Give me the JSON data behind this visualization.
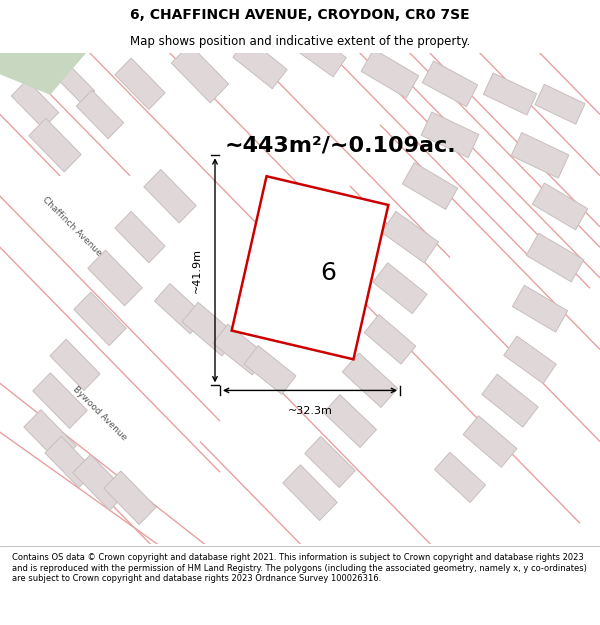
{
  "title": "6, CHAFFINCH AVENUE, CROYDON, CR0 7SE",
  "subtitle": "Map shows position and indicative extent of the property.",
  "area_text": "~443m²/~0.109ac.",
  "label_number": "6",
  "dim_width": "~32.3m",
  "dim_height": "~41.9m",
  "footer": "Contains OS data © Crown copyright and database right 2021. This information is subject to Crown copyright and database rights 2023 and is reproduced with the permission of HM Land Registry. The polygons (including the associated geometry, namely x, y co-ordinates) are subject to Crown copyright and database rights 2023 Ordnance Survey 100026316.",
  "bg_color": "#f7f2f2",
  "map_bg": "#f7f2f2",
  "street_color": "#e8a0a0",
  "building_edge_color": "#c8bebe",
  "building_fill": "#e0d8d8",
  "plot_color": "#cc0000",
  "title_fontsize": 10,
  "subtitle_fontsize": 8.5,
  "area_fontsize": 16,
  "label_fontsize": 18,
  "footer_fontsize": 6.0,
  "green_fill": "#c8d8c0"
}
